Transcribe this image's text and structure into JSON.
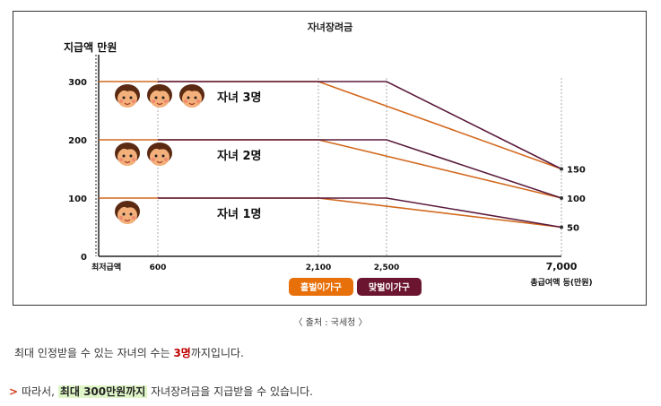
{
  "chart_data": {
    "type": "line",
    "title": "자녀장려금",
    "ylabel": "지급액 만원",
    "xlabel": "총급여액 등(만원)",
    "x_axis_start_label": "최저급액",
    "x_tick_labels": [
      "600",
      "2,100",
      "2,500",
      "7,000"
    ],
    "y_tick_labels": [
      "0",
      "100",
      "200",
      "300"
    ],
    "right_labels": [
      "150",
      "100",
      "50"
    ],
    "ylim": [
      0,
      300
    ],
    "series": [
      {
        "name": "홑벌이가구",
        "color": "#d2691e",
        "lines": [
          {
            "label": "자녀 3명",
            "points": [
              [
                0,
                300
              ],
              [
                2100,
                300
              ],
              [
                7000,
                150
              ]
            ]
          },
          {
            "label": "자녀 2명",
            "points": [
              [
                0,
                200
              ],
              [
                2100,
                200
              ],
              [
                7000,
                100
              ]
            ]
          },
          {
            "label": "자녀 1명",
            "points": [
              [
                0,
                100
              ],
              [
                2100,
                100
              ],
              [
                7000,
                50
              ]
            ]
          }
        ]
      },
      {
        "name": "맞벌이가구",
        "color": "#5a1a3c",
        "lines": [
          {
            "label": "자녀 3명",
            "points": [
              [
                600,
                300
              ],
              [
                2500,
                300
              ],
              [
                7000,
                150
              ]
            ]
          },
          {
            "label": "자녀 2명",
            "points": [
              [
                600,
                200
              ],
              [
                2500,
                200
              ],
              [
                7000,
                100
              ]
            ]
          },
          {
            "label": "자녀 1명",
            "points": [
              [
                600,
                100
              ],
              [
                2500,
                100
              ],
              [
                7000,
                50
              ]
            ]
          }
        ]
      }
    ],
    "legend": [
      {
        "label": "홑벌이가구",
        "color": "#e8700a"
      },
      {
        "label": "맞벌이가구",
        "color": "#6b1530"
      }
    ],
    "child_labels": [
      {
        "text": "자녀 3명",
        "count": 3,
        "y": 300
      },
      {
        "text": "자녀 2명",
        "count": 2,
        "y": 200
      },
      {
        "text": "자녀 1명",
        "count": 1,
        "y": 100
      }
    ],
    "grid": false
  },
  "caption": "〈 출처 : 국세청 〉",
  "text1": {
    "before": "최대 인정받을 수 있는 자녀의 수는 ",
    "highlight": "3명",
    "after": "까지입니다."
  },
  "text2": {
    "arrow": ">",
    "before": "따라서, ",
    "highlight": "최대 300만원까지",
    "after": " 자녀장려금을 지급받을 수 있습니다."
  }
}
